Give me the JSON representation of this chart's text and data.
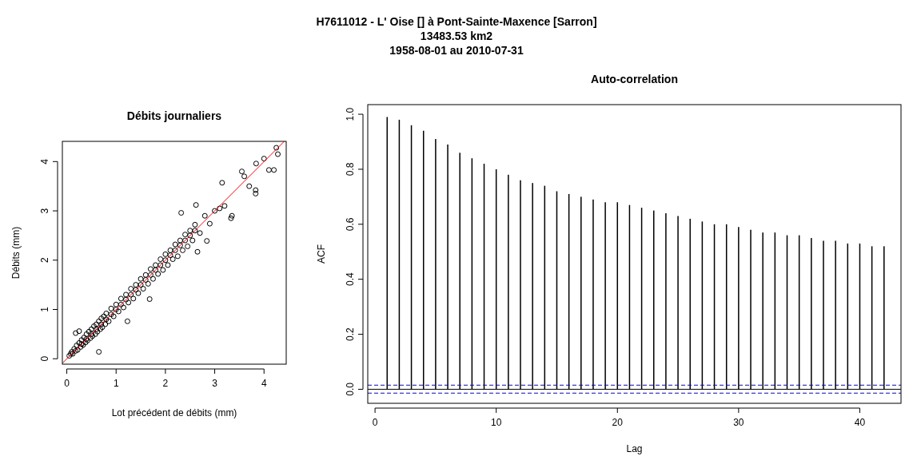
{
  "chart_data": [
    {
      "type": "scatter",
      "title": "Débits journaliers",
      "xlabel": "Lot précédent de débits (mm)",
      "ylabel": "Débits (mm)",
      "annotations": [
        "H7611012 - L' Oise [] à Pont-Sainte-Maxence [Sarron]",
        "13483.53 km2",
        "1958-08-01 au 2010-07-31"
      ],
      "xlim": [
        -0.09,
        4.45
      ],
      "ylim": [
        -0.11,
        4.41
      ],
      "xticks": [
        0,
        1,
        2,
        3,
        4
      ],
      "yticks": [
        0,
        1,
        2,
        3,
        4
      ],
      "marker": "circle",
      "grid": false,
      "series": [
        {
          "color": "#000000",
          "x": [
            0.05,
            0.08,
            0.1,
            0.12,
            0.15,
            0.18,
            0.2,
            0.22,
            0.25,
            0.28,
            0.3,
            0.33,
            0.35,
            0.38,
            0.4,
            0.42,
            0.45,
            0.48,
            0.5,
            0.52,
            0.55,
            0.58,
            0.6,
            0.62,
            0.65,
            0.68,
            0.7,
            0.72,
            0.75,
            0.78,
            0.8,
            0.85,
            0.9,
            0.95,
            1.0,
            1.05,
            1.1,
            1.15,
            1.2,
            1.25,
            1.3,
            1.35,
            1.4,
            1.45,
            1.5,
            1.55,
            1.6,
            1.65,
            1.7,
            1.75,
            1.8,
            1.85,
            1.9,
            1.95,
            2.0,
            2.05,
            2.1,
            2.15,
            2.2,
            2.25,
            2.3,
            2.35,
            2.4,
            2.45,
            2.5,
            2.55,
            2.6,
            2.7,
            2.8,
            2.9,
            3.0,
            3.1,
            3.2,
            0.18,
            0.25,
            0.65,
            1.23,
            1.68,
            2.32,
            2.62,
            2.65,
            2.84,
            3.15,
            3.33,
            3.35,
            3.55,
            3.6,
            3.7,
            3.83,
            3.83,
            3.84,
            4.0,
            4.1,
            4.2,
            4.25,
            4.28,
            0.3,
            0.5,
            0.7,
            0.9,
            1.1,
            1.3,
            1.5,
            1.7,
            1.9,
            2.1,
            2.3,
            2.5,
            0.4,
            0.6,
            0.8,
            1.0,
            1.2,
            1.4,
            1.6,
            1.8,
            2.0,
            2.2,
            2.4,
            2.6
          ],
          "values": [
            0.06,
            0.1,
            0.14,
            0.1,
            0.2,
            0.16,
            0.27,
            0.18,
            0.32,
            0.24,
            0.38,
            0.28,
            0.43,
            0.33,
            0.5,
            0.37,
            0.55,
            0.42,
            0.6,
            0.46,
            0.66,
            0.5,
            0.7,
            0.55,
            0.76,
            0.6,
            0.82,
            0.64,
            0.86,
            0.7,
            0.92,
            0.76,
            1.02,
            0.86,
            1.1,
            0.96,
            1.22,
            1.04,
            1.3,
            1.14,
            1.42,
            1.22,
            1.5,
            1.33,
            1.62,
            1.42,
            1.7,
            1.52,
            1.82,
            1.62,
            1.9,
            1.72,
            2.02,
            1.8,
            2.12,
            1.9,
            2.2,
            2.02,
            2.32,
            2.08,
            2.4,
            2.2,
            2.52,
            2.28,
            2.6,
            2.4,
            2.72,
            2.55,
            2.9,
            2.74,
            3.0,
            3.05,
            3.1,
            0.52,
            0.56,
            0.14,
            0.76,
            1.21,
            2.96,
            3.12,
            2.17,
            2.39,
            3.57,
            2.85,
            2.9,
            3.8,
            3.7,
            3.5,
            3.42,
            3.35,
            3.96,
            4.06,
            3.83,
            3.83,
            4.28,
            4.15,
            0.3,
            0.5,
            0.7,
            0.9,
            1.1,
            1.3,
            1.5,
            1.7,
            1.9,
            2.1,
            2.3,
            2.5,
            0.4,
            0.6,
            0.8,
            1.0,
            1.2,
            1.4,
            1.6,
            1.8,
            2.0,
            2.2,
            2.4,
            2.6
          ]
        },
        {
          "type": "line",
          "color": "#ff0000",
          "marker": "none",
          "x": [
            -0.09,
            4.41
          ],
          "values": [
            -0.09,
            4.41
          ]
        }
      ]
    },
    {
      "type": "bar",
      "title": "Auto-correlation",
      "xlabel": "Lag",
      "ylabel": "ACF",
      "xlim": [
        -0.6,
        43.4
      ],
      "ylim": [
        -0.051,
        1.035
      ],
      "xticks": [
        0,
        10,
        20,
        30,
        40
      ],
      "yticks": [
        {
          "value": 0,
          "label": "0.0"
        },
        {
          "value": 0.2,
          "label": "0.2"
        },
        {
          "value": 0.4,
          "label": "0.4"
        },
        {
          "value": 0.6,
          "label": "0.6"
        },
        {
          "value": 0.8,
          "label": "0.8"
        },
        {
          "value": 1,
          "label": "1.0"
        }
      ],
      "grid": false,
      "x": [
        1,
        2,
        3,
        4,
        5,
        6,
        7,
        8,
        9,
        10,
        11,
        12,
        13,
        14,
        15,
        16,
        17,
        18,
        19,
        20,
        21,
        22,
        23,
        24,
        25,
        26,
        27,
        28,
        29,
        30,
        31,
        32,
        33,
        34,
        35,
        36,
        37,
        38,
        39,
        40,
        41,
        42
      ],
      "series": [
        {
          "color": "#000000",
          "values": [
            0.99,
            0.98,
            0.96,
            0.94,
            0.91,
            0.89,
            0.86,
            0.84,
            0.82,
            0.8,
            0.78,
            0.76,
            0.75,
            0.74,
            0.72,
            0.71,
            0.7,
            0.69,
            0.68,
            0.68,
            0.67,
            0.66,
            0.65,
            0.64,
            0.63,
            0.62,
            0.61,
            0.6,
            0.6,
            0.59,
            0.58,
            0.57,
            0.57,
            0.56,
            0.56,
            0.55,
            0.54,
            0.54,
            0.53,
            0.53,
            0.52,
            0.52
          ]
        }
      ],
      "ref_lines": [
        {
          "axis": "y",
          "value": 0,
          "color": "#000000",
          "line_style": "solid"
        },
        {
          "axis": "y",
          "value": 0.015,
          "color": "#0000ff",
          "line_style": "dashed"
        },
        {
          "axis": "y",
          "value": -0.014,
          "color": "#0000ff",
          "line_style": "dashed"
        }
      ]
    }
  ]
}
